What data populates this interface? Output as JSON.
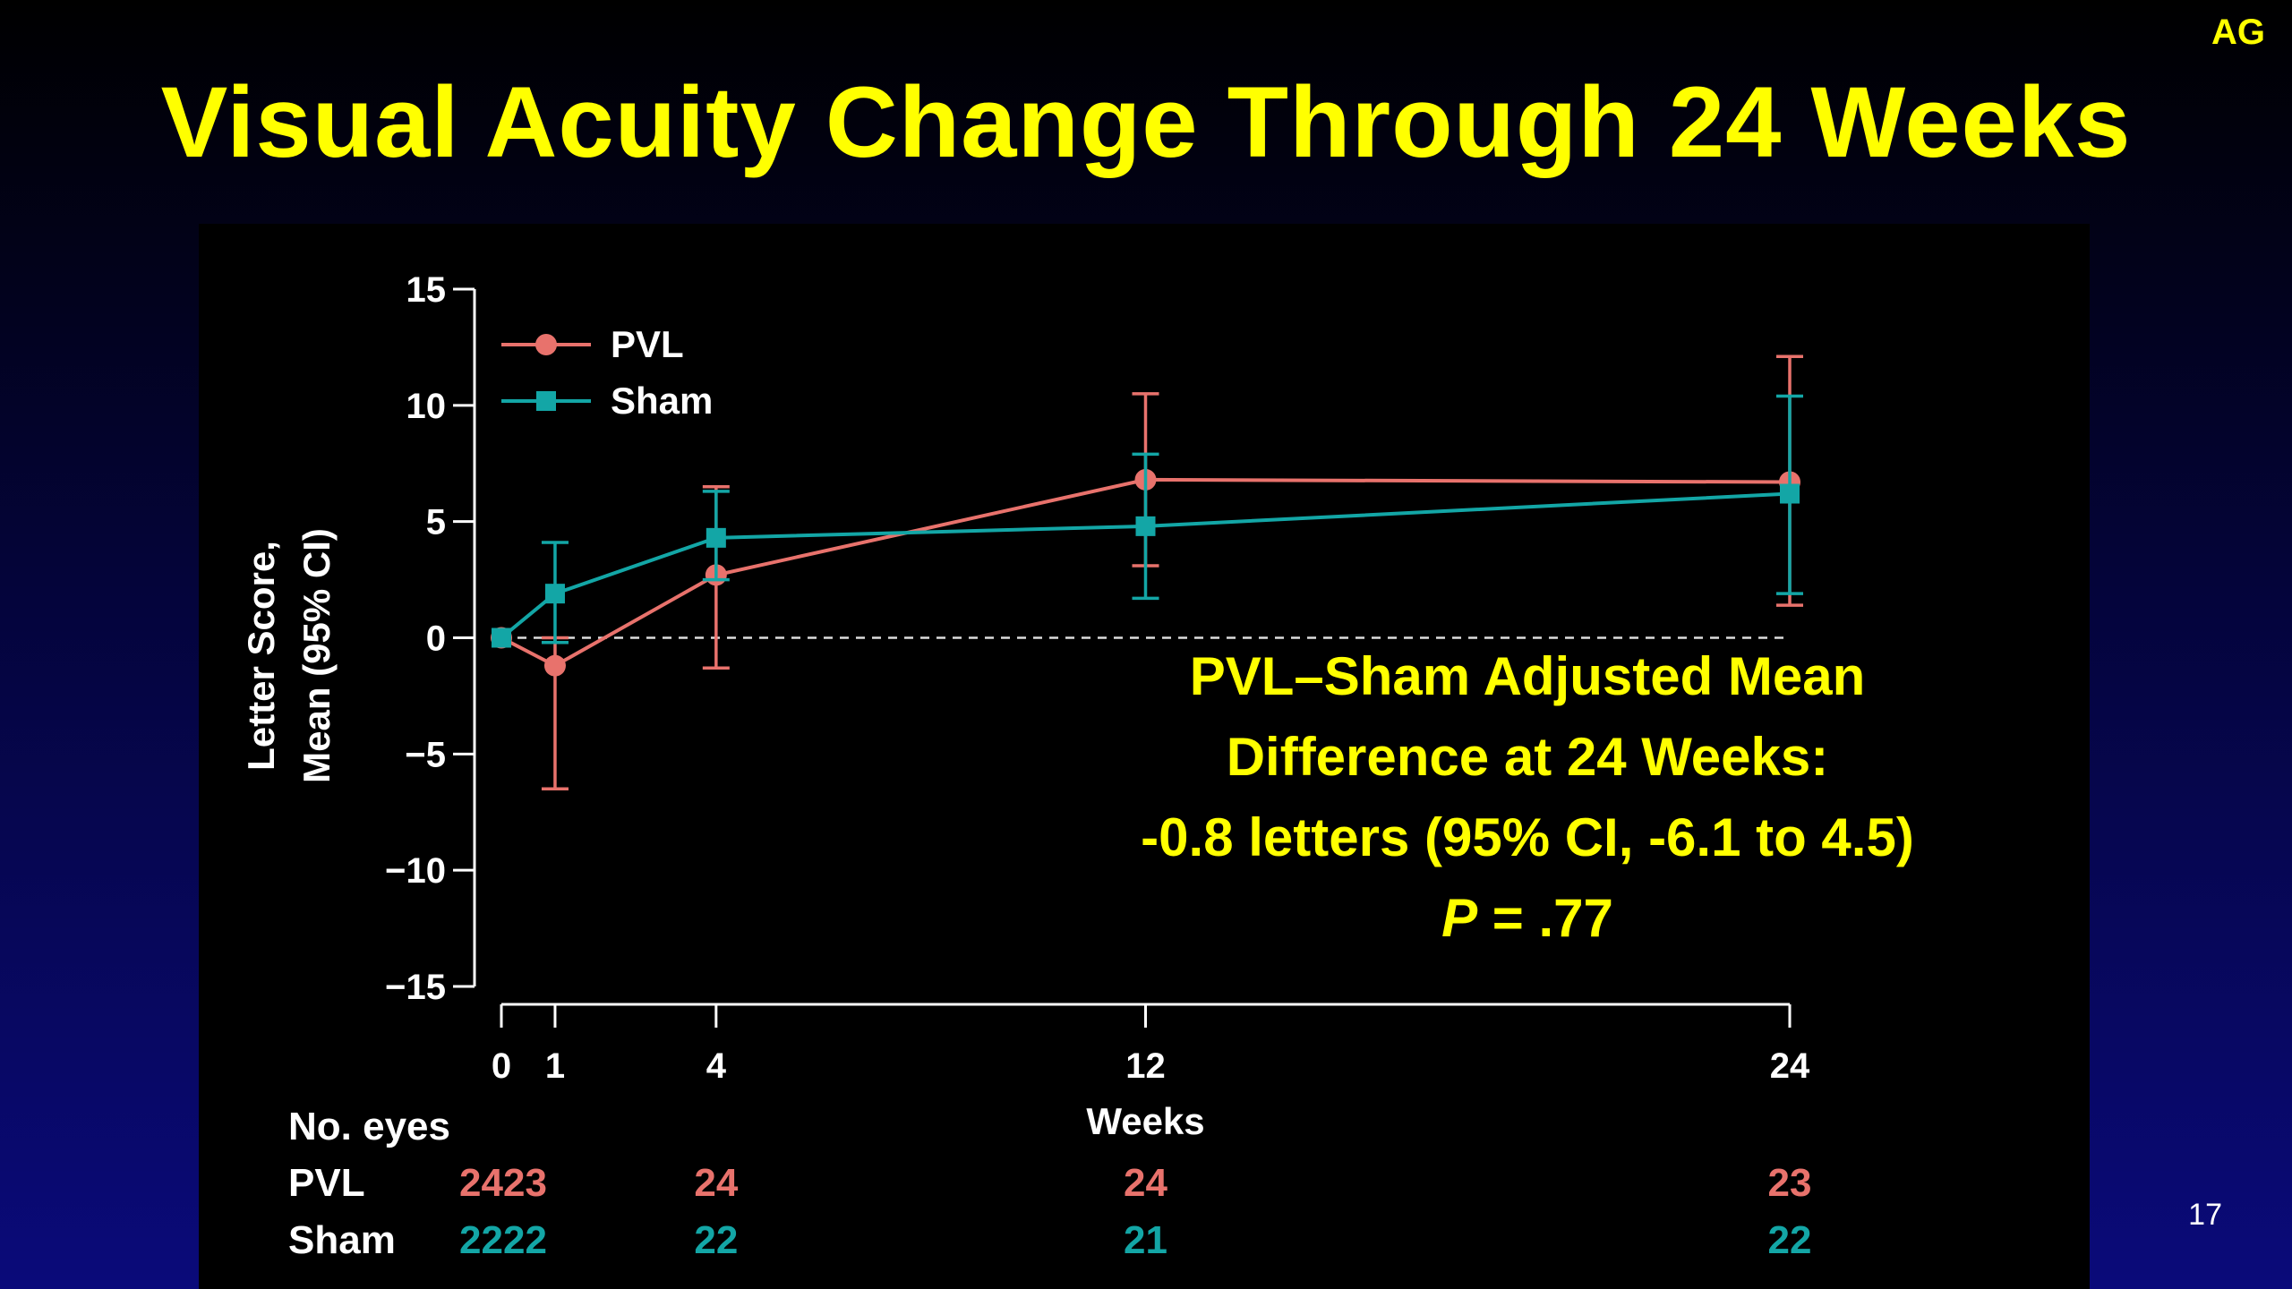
{
  "corner_tag": "AG",
  "title": "Visual Acuity Change Through 24 Weeks",
  "page_number": "17",
  "colors": {
    "pvl": "#e8726c",
    "sham": "#13a6a6",
    "highlight": "#ffff00"
  },
  "annotation": {
    "line1": "PVL–Sham Adjusted Mean",
    "line2": "Difference at 24 Weeks:",
    "line3": "-0.8 letters (95% CI, -6.1 to 4.5)",
    "line4_italic": "P",
    "line4_rest": " = .77"
  },
  "chart_data": {
    "type": "line",
    "ylabel": [
      "Letter Score,",
      "Mean (95% CI)"
    ],
    "xlabel": "Weeks",
    "ylim": [
      -15,
      15
    ],
    "yticks": [
      15,
      10,
      5,
      0,
      -5,
      -10,
      -15
    ],
    "ytick_labels": [
      "15",
      "10",
      "5",
      "0",
      "−5",
      "−10",
      "−15"
    ],
    "xlim": [
      0,
      24
    ],
    "xticks": [
      0,
      1,
      4,
      12,
      24
    ],
    "reference_line": 0,
    "legend_position": "top-left",
    "series": [
      {
        "name": "PVL",
        "marker": "circle",
        "x": [
          0,
          1,
          4,
          12,
          24
        ],
        "y": [
          0,
          -1.2,
          2.7,
          6.8,
          6.7
        ],
        "ci_low": [
          0,
          -6.5,
          -1.3,
          3.1,
          1.4
        ],
        "ci_high": [
          0,
          0,
          6.5,
          10.5,
          12.1
        ]
      },
      {
        "name": "Sham",
        "marker": "square",
        "x": [
          0,
          1,
          4,
          12,
          24
        ],
        "y": [
          0,
          1.9,
          4.3,
          4.8,
          6.2
        ],
        "ci_low": [
          0,
          -0.2,
          2.5,
          1.7,
          1.9
        ],
        "ci_high": [
          0,
          4.1,
          6.3,
          7.9,
          10.4
        ]
      }
    ],
    "eyes_table": {
      "header": "No. eyes",
      "rows": [
        {
          "label": "PVL",
          "counts": [
            "24",
            "23",
            "24",
            "24",
            "23"
          ]
        },
        {
          "label": "Sham",
          "counts": [
            "22",
            "22",
            "22",
            "21",
            "22"
          ]
        }
      ]
    }
  }
}
